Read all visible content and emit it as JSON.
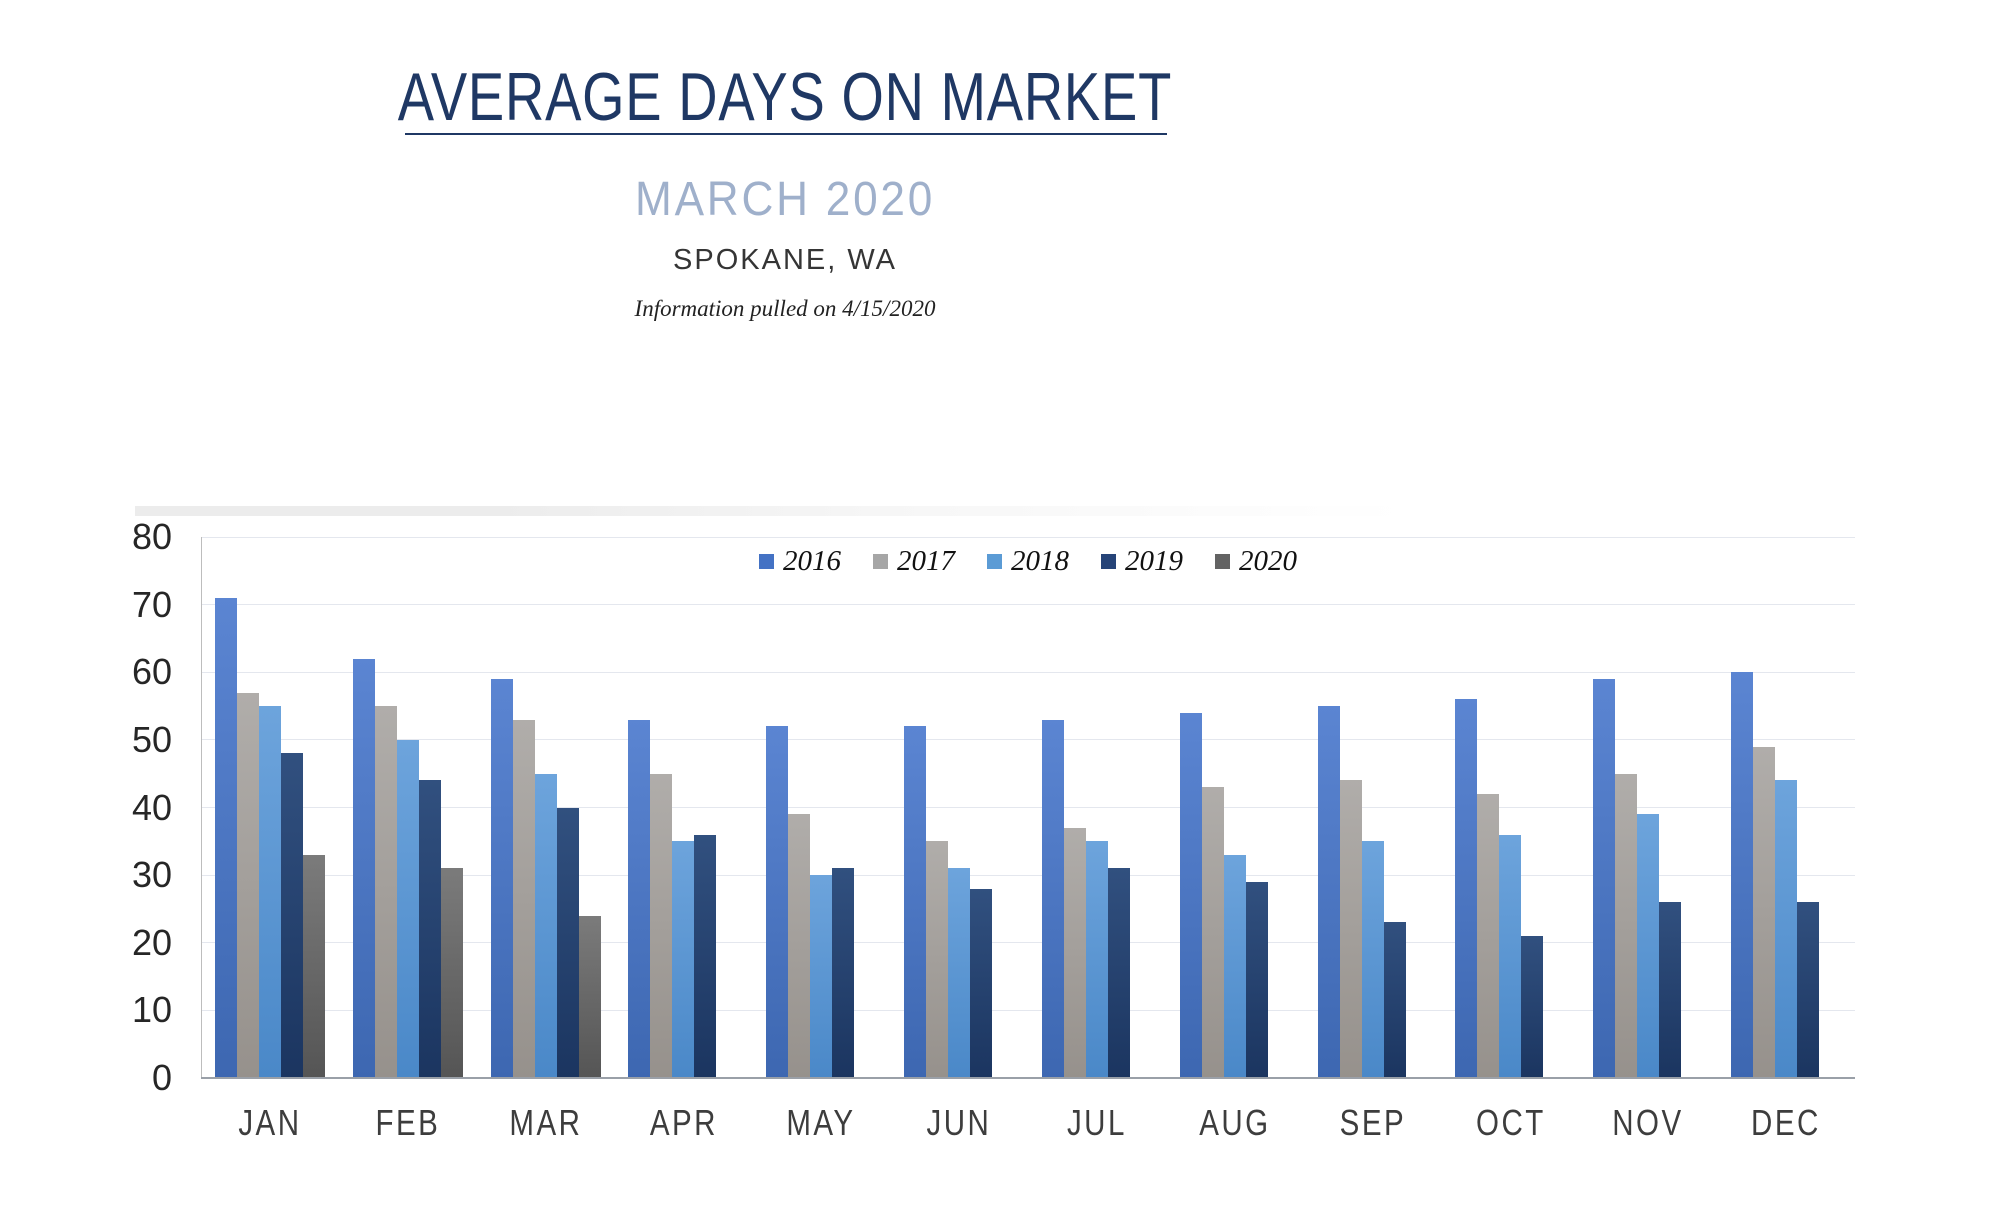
{
  "header": {
    "title": "AVERAGE DAYS ON MARKET",
    "subtitle": "MARCH 2020",
    "location": "SPOKANE, WA",
    "note": "Information pulled on 4/15/2020"
  },
  "chart_data": {
    "type": "bar",
    "title": "AVERAGE DAYS ON MARKET",
    "xlabel": "",
    "ylabel": "",
    "ylim": [
      0,
      80
    ],
    "ytick_step": 10,
    "grid": true,
    "legend_position": "top-center",
    "categories": [
      "JAN",
      "FEB",
      "MAR",
      "APR",
      "MAY",
      "JUN",
      "JUL",
      "AUG",
      "SEP",
      "OCT",
      "NOV",
      "DEC"
    ],
    "series": [
      {
        "name": "2016",
        "color": "#4472C4",
        "gradient_top": "#5b85d2",
        "gradient_bottom": "#3d67b1",
        "values": [
          71,
          62,
          59,
          53,
          52,
          52,
          53,
          54,
          55,
          56,
          59,
          60
        ]
      },
      {
        "name": "2017",
        "color": "#A6A6A6",
        "gradient_top": "#b0adaa",
        "gradient_bottom": "#96918c",
        "values": [
          57,
          55,
          53,
          45,
          39,
          35,
          37,
          43,
          44,
          42,
          45,
          49
        ]
      },
      {
        "name": "2018",
        "color": "#5B9BD5",
        "gradient_top": "#6da4dc",
        "gradient_bottom": "#4a88c8",
        "values": [
          55,
          50,
          45,
          35,
          30,
          31,
          35,
          33,
          35,
          36,
          39,
          44
        ]
      },
      {
        "name": "2019",
        "color": "#264478",
        "gradient_top": "#31507f",
        "gradient_bottom": "#1b3560",
        "values": [
          48,
          44,
          40,
          36,
          31,
          28,
          31,
          29,
          23,
          21,
          26,
          26
        ]
      },
      {
        "name": "2020",
        "color": "#636363",
        "gradient_top": "#7b7b7b",
        "gradient_bottom": "#555555",
        "values": [
          33,
          31,
          24,
          null,
          null,
          null,
          null,
          null,
          null,
          null,
          null,
          null
        ]
      }
    ]
  }
}
